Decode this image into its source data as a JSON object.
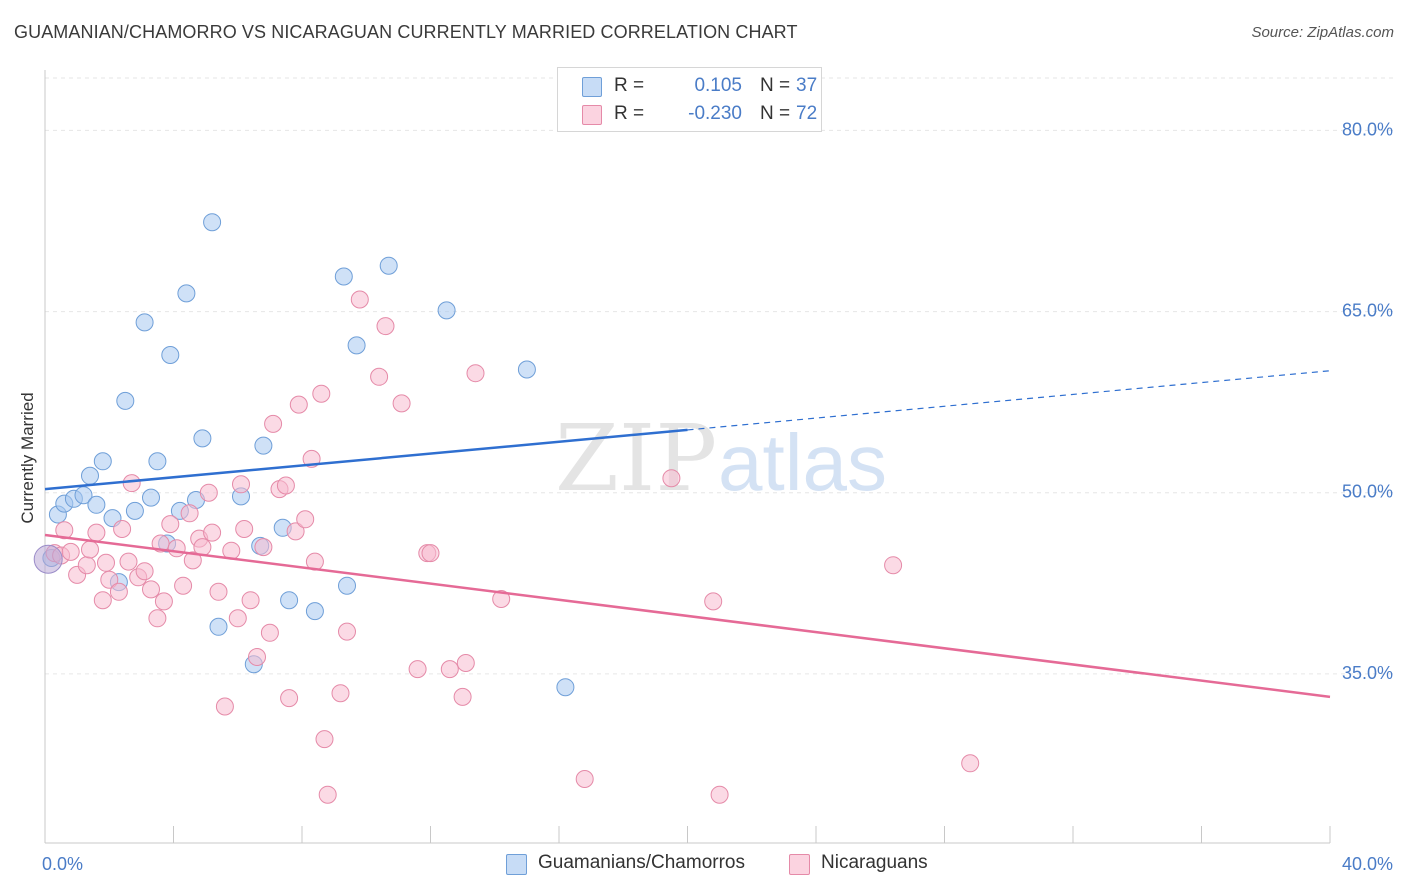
{
  "title": "GUAMANIAN/CHAMORRO VS NICARAGUAN CURRENTLY MARRIED CORRELATION CHART",
  "source": "Source: ZipAtlas.com",
  "watermark": {
    "zip": "ZIP",
    "atlas": "atlas"
  },
  "legend": {
    "rows": [
      {
        "r_label": "R =",
        "r_value": "0.105",
        "n_label": "N =",
        "n_value": "37",
        "color": "#a8c8f0",
        "border": "#6f9fd8"
      },
      {
        "r_label": "R =",
        "r_value": "-0.230",
        "n_label": "N =",
        "n_value": "72",
        "color": "#f8bcd0",
        "border": "#e58aa8"
      }
    ]
  },
  "bottom_legend": [
    {
      "label": "Guamanians/Chamorros",
      "color": "#a8c8f0",
      "border": "#6f9fd8"
    },
    {
      "label": "Nicaraguans",
      "color": "#f8bcd0",
      "border": "#e58aa8"
    }
  ],
  "chart_data": {
    "type": "scatter",
    "title": "GUAMANIAN/CHAMORRO VS NICARAGUAN CURRENTLY MARRIED CORRELATION CHART",
    "xlabel": "",
    "ylabel": "Currently Married",
    "xlim": [
      0,
      40
    ],
    "ylim": [
      21,
      85
    ],
    "x_tick_labels": [
      {
        "value": 0,
        "label": "0.0%"
      },
      {
        "value": 40,
        "label": "40.0%"
      }
    ],
    "y_tick_labels": [
      {
        "value": 80,
        "label": "80.0%"
      },
      {
        "value": 65,
        "label": "65.0%"
      },
      {
        "value": 50,
        "label": "50.0%"
      },
      {
        "value": 35,
        "label": "35.0%"
      }
    ],
    "grid": true,
    "legend_position": "top-center",
    "series": [
      {
        "name": "Guamanians/Chamorros",
        "color": "#a8c8f0",
        "stroke": "#6f9fd8",
        "line_color": "#2f6fd0",
        "trend": {
          "x0": 0,
          "y0": 50.3,
          "x1": 20,
          "y1": 55.2,
          "dash_x1": 40,
          "dash_y1": 60.1
        },
        "points": [
          [
            0.2,
            44.6
          ],
          [
            0.4,
            48.2
          ],
          [
            0.6,
            49.1
          ],
          [
            0.9,
            49.5
          ],
          [
            1.2,
            49.8
          ],
          [
            1.4,
            51.4
          ],
          [
            1.6,
            49.0
          ],
          [
            1.8,
            52.6
          ],
          [
            2.1,
            47.9
          ],
          [
            2.3,
            42.6
          ],
          [
            2.5,
            57.6
          ],
          [
            2.8,
            48.5
          ],
          [
            3.1,
            64.1
          ],
          [
            3.3,
            49.6
          ],
          [
            3.5,
            52.6
          ],
          [
            3.8,
            45.8
          ],
          [
            3.9,
            61.4
          ],
          [
            4.2,
            48.5
          ],
          [
            4.4,
            66.5
          ],
          [
            4.7,
            49.4
          ],
          [
            4.9,
            54.5
          ],
          [
            5.2,
            72.4
          ],
          [
            5.4,
            38.9
          ],
          [
            6.1,
            49.7
          ],
          [
            6.5,
            35.8
          ],
          [
            6.7,
            45.6
          ],
          [
            6.8,
            53.9
          ],
          [
            7.4,
            47.1
          ],
          [
            7.6,
            41.1
          ],
          [
            8.4,
            40.2
          ],
          [
            9.3,
            67.9
          ],
          [
            9.4,
            42.3
          ],
          [
            9.7,
            62.2
          ],
          [
            10.7,
            68.8
          ],
          [
            12.5,
            65.1
          ],
          [
            15.0,
            60.2
          ],
          [
            16.2,
            33.9
          ]
        ]
      },
      {
        "name": "Nicaraguans",
        "color": "#f8bcd0",
        "stroke": "#e58aa8",
        "line_color": "#e56a96",
        "trend": {
          "x0": 0,
          "y0": 46.5,
          "x1": 40,
          "y1": 33.1
        },
        "points": [
          [
            0.3,
            45.0
          ],
          [
            0.5,
            44.8
          ],
          [
            0.6,
            46.9
          ],
          [
            0.8,
            45.1
          ],
          [
            1.0,
            43.2
          ],
          [
            1.3,
            44.0
          ],
          [
            1.4,
            45.3
          ],
          [
            1.6,
            46.7
          ],
          [
            1.8,
            41.1
          ],
          [
            1.9,
            44.2
          ],
          [
            2.0,
            42.8
          ],
          [
            2.3,
            41.8
          ],
          [
            2.4,
            47.0
          ],
          [
            2.6,
            44.3
          ],
          [
            2.7,
            50.8
          ],
          [
            2.9,
            43.0
          ],
          [
            3.1,
            43.5
          ],
          [
            3.3,
            42.0
          ],
          [
            3.5,
            39.6
          ],
          [
            3.6,
            45.8
          ],
          [
            3.7,
            41.0
          ],
          [
            3.9,
            47.4
          ],
          [
            4.1,
            45.4
          ],
          [
            4.3,
            42.3
          ],
          [
            4.5,
            48.3
          ],
          [
            4.6,
            44.4
          ],
          [
            4.8,
            46.2
          ],
          [
            4.9,
            45.5
          ],
          [
            5.1,
            50.0
          ],
          [
            5.2,
            46.7
          ],
          [
            5.4,
            41.8
          ],
          [
            5.6,
            32.3
          ],
          [
            5.8,
            45.2
          ],
          [
            6.0,
            39.6
          ],
          [
            6.1,
            50.7
          ],
          [
            6.2,
            47.0
          ],
          [
            6.4,
            41.1
          ],
          [
            6.6,
            36.4
          ],
          [
            6.8,
            45.5
          ],
          [
            7.0,
            38.4
          ],
          [
            7.1,
            55.7
          ],
          [
            7.3,
            50.3
          ],
          [
            7.5,
            50.6
          ],
          [
            7.6,
            33.0
          ],
          [
            7.8,
            46.8
          ],
          [
            7.9,
            57.3
          ],
          [
            8.1,
            47.8
          ],
          [
            8.3,
            52.8
          ],
          [
            8.4,
            44.3
          ],
          [
            8.6,
            58.2
          ],
          [
            8.7,
            29.6
          ],
          [
            8.8,
            25.0
          ],
          [
            9.2,
            33.4
          ],
          [
            9.4,
            38.5
          ],
          [
            9.8,
            66.0
          ],
          [
            10.4,
            59.6
          ],
          [
            10.6,
            63.8
          ],
          [
            11.1,
            57.4
          ],
          [
            11.6,
            35.4
          ],
          [
            11.9,
            45.0
          ],
          [
            12.0,
            45.0
          ],
          [
            12.6,
            35.4
          ],
          [
            13.0,
            33.1
          ],
          [
            13.1,
            35.9
          ],
          [
            13.4,
            59.9
          ],
          [
            19.5,
            51.2
          ],
          [
            20.8,
            41.0
          ],
          [
            21.0,
            25.0
          ],
          [
            28.8,
            27.6
          ],
          [
            26.4,
            44.0
          ],
          [
            16.8,
            26.3
          ],
          [
            14.2,
            41.2
          ]
        ]
      }
    ]
  }
}
